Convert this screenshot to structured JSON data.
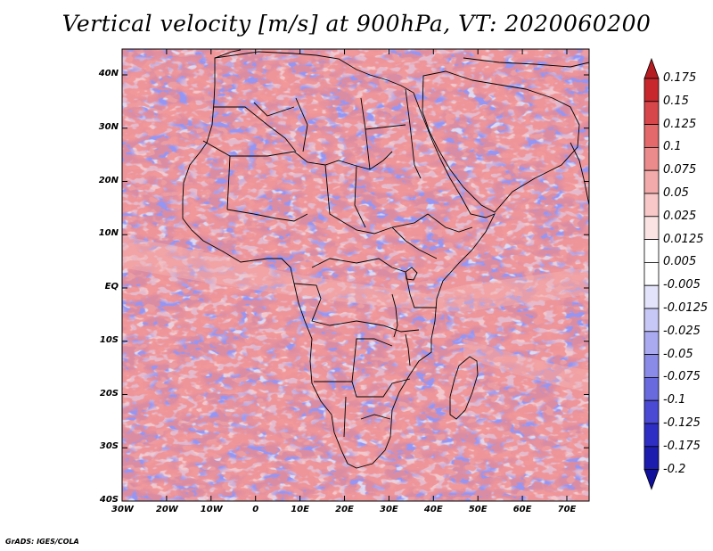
{
  "title": "Vertical velocity [m/s] at 900hPa, VT: 2020060200",
  "credit": "GrADS: IGES/COLA",
  "axes": {
    "lat_labels": [
      "40N",
      "30N",
      "20N",
      "10N",
      "EQ",
      "10S",
      "20S",
      "30S",
      "40S"
    ],
    "lon_labels": [
      "30W",
      "20W",
      "10W",
      "0",
      "10E",
      "20E",
      "30E",
      "40E",
      "50E",
      "60E",
      "70E"
    ]
  },
  "colorbar": {
    "labels": [
      "0.175",
      "0.15",
      "0.125",
      "0.1",
      "0.075",
      "0.05",
      "0.025",
      "0.0125",
      "0.005",
      "-0.005",
      "-0.0125",
      "-0.025",
      "-0.05",
      "-0.075",
      "-0.1",
      "-0.125",
      "-0.175",
      "-0.2"
    ],
    "colors": [
      "#b41e22",
      "#c8282d",
      "#d7464a",
      "#e3696b",
      "#ec8b8c",
      "#f3aaaa",
      "#f8c8c8",
      "#fbe3e3",
      "#ffffff",
      "#ffffff",
      "#e3e3fb",
      "#c8c8f6",
      "#aaaaf0",
      "#8a8ae8",
      "#6a6adf",
      "#4a4ad4",
      "#2e2ec4",
      "#1c1cae",
      "#10109a"
    ]
  },
  "chart_data": {
    "type": "heatmap",
    "title": "Vertical velocity [m/s] at 900hPa, VT: 2020060200",
    "variable": "Vertical velocity",
    "units": "m/s",
    "level": "900hPa",
    "valid_time": "2020060200",
    "lon_range": [
      -30,
      75
    ],
    "lat_range": [
      -40,
      45
    ],
    "levels": [
      -0.2,
      -0.175,
      -0.125,
      -0.1,
      -0.075,
      -0.05,
      -0.025,
      -0.0125,
      -0.005,
      0.005,
      0.0125,
      0.025,
      0.05,
      0.075,
      0.1,
      0.125,
      0.15,
      0.175
    ]
  }
}
